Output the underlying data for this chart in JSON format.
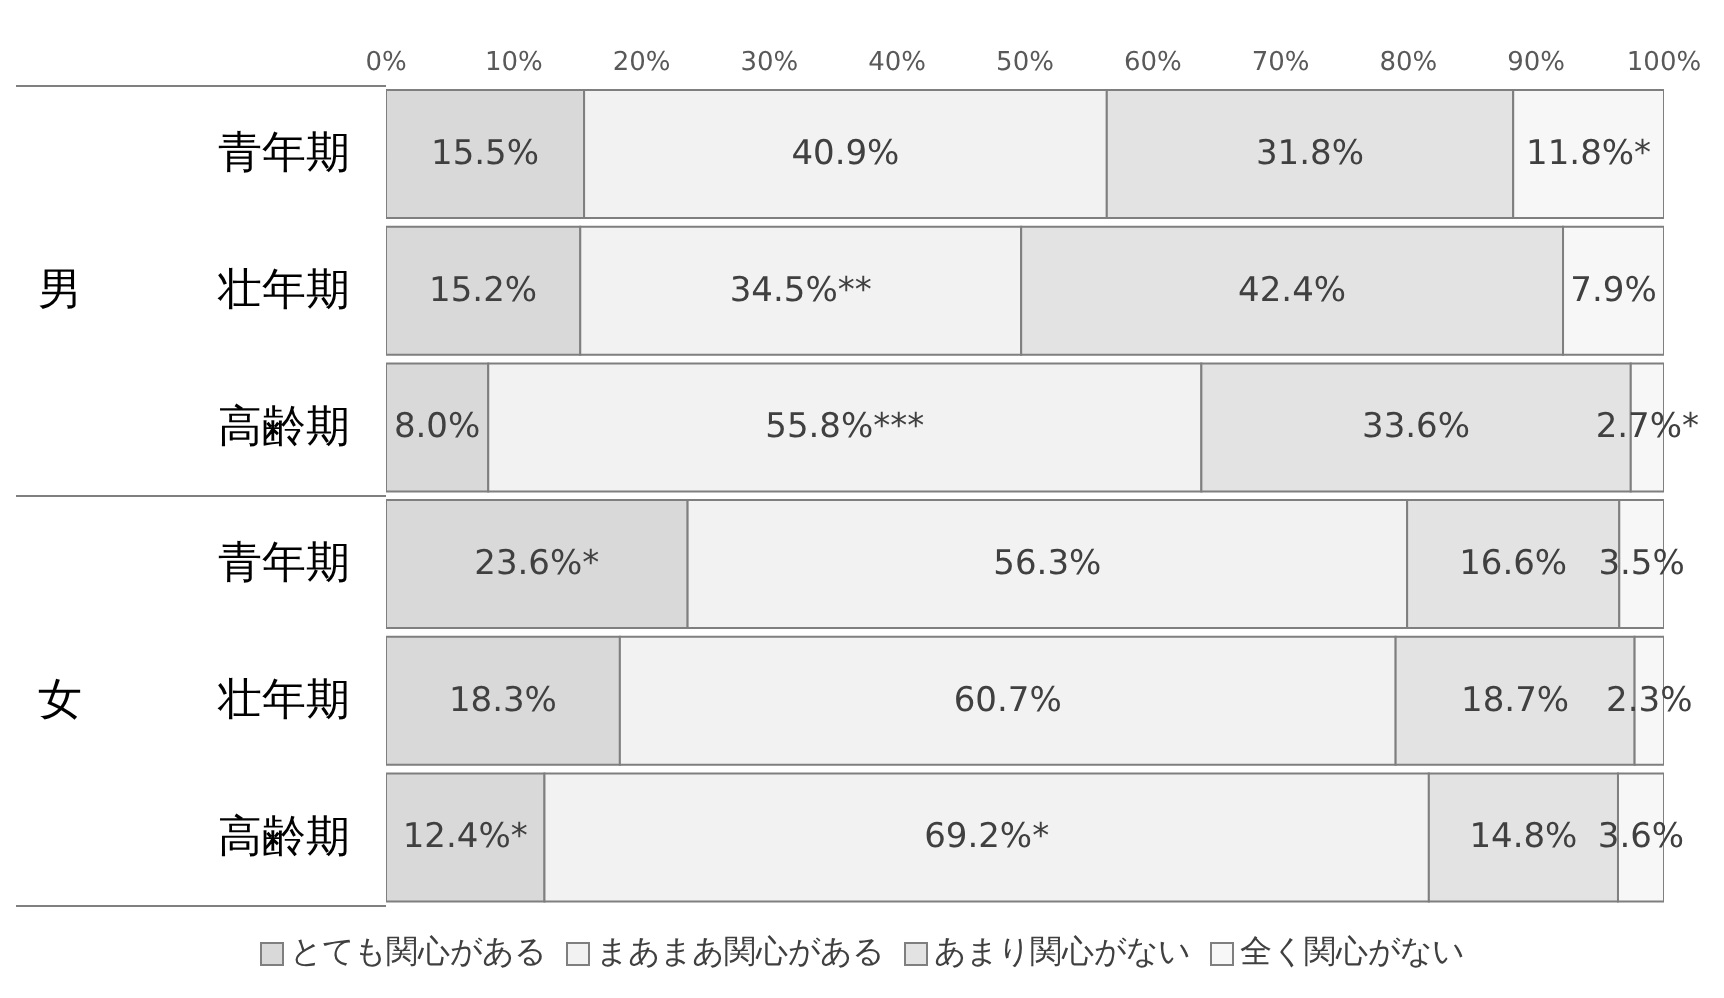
{
  "chart_data": {
    "type": "bar",
    "orientation": "horizontal",
    "stacked": true,
    "categories": [
      "青年期",
      "壮年期",
      "高齢期",
      "青年期",
      "壮年期",
      "高齢期"
    ],
    "annotations": [
      "男",
      "女"
    ],
    "series": [
      {
        "name": "とても関心がある",
        "color": "#d9d9d9",
        "values": [
          15.5,
          15.2,
          8.0,
          23.6,
          18.3,
          12.4
        ],
        "value_labels": [
          "15.5%",
          "15.2%",
          "8.0%",
          "23.6%*",
          "18.3%",
          "12.4%*"
        ]
      },
      {
        "name": "まあまあ関心がある",
        "color": "#f2f2f2",
        "values": [
          40.9,
          34.5,
          55.8,
          56.3,
          60.7,
          69.2
        ],
        "value_labels": [
          "40.9%",
          "34.5%**",
          "55.8%***",
          "56.3%",
          "60.7%",
          "69.2%*"
        ]
      },
      {
        "name": "あまり関心がない",
        "color": "#e3e3e3",
        "values": [
          31.8,
          42.4,
          33.6,
          16.6,
          18.7,
          14.8
        ],
        "value_labels": [
          "31.8%",
          "42.4%",
          "33.6%",
          "16.6%",
          "18.7%",
          "14.8%"
        ]
      },
      {
        "name": "全く関心がない",
        "color": "#f7f7f7",
        "values": [
          11.8,
          7.9,
          2.7,
          3.5,
          2.3,
          3.6
        ],
        "value_labels": [
          "11.8%*",
          "7.9%",
          "2.7%*",
          "3.5%",
          "2.3%",
          "3.6%"
        ]
      }
    ],
    "xlim": [
      0,
      100
    ],
    "xticks": [
      {
        "value": 0,
        "label": "0%"
      },
      {
        "value": 10,
        "label": "10%"
      },
      {
        "value": 20,
        "label": "20%"
      },
      {
        "value": 30,
        "label": "30%"
      },
      {
        "value": 40,
        "label": "40%"
      },
      {
        "value": 50,
        "label": "50%"
      },
      {
        "value": 60,
        "label": "60%"
      },
      {
        "value": 70,
        "label": "70%"
      },
      {
        "value": 80,
        "label": "80%"
      },
      {
        "value": 90,
        "label": "90%"
      },
      {
        "value": 100,
        "label": "100%"
      }
    ],
    "legend": "bottom"
  }
}
